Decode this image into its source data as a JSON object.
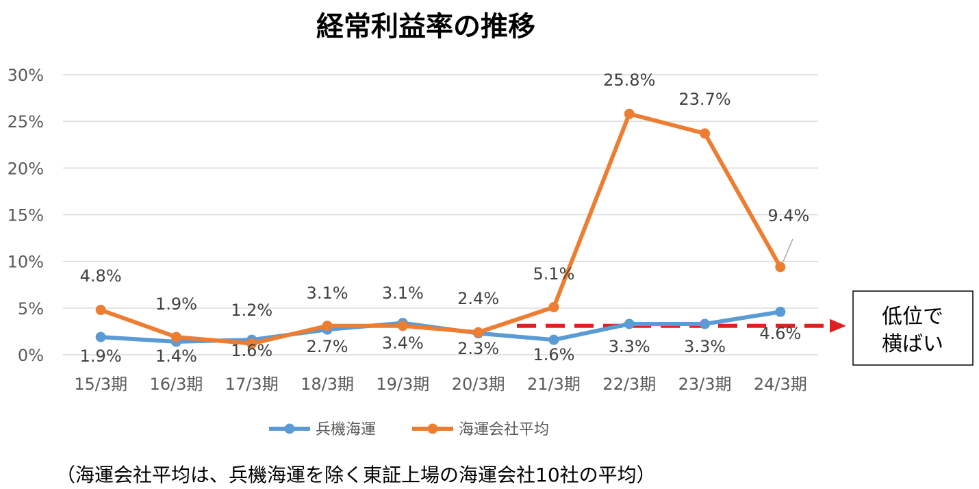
{
  "chart_data": {
    "type": "line",
    "title": "経常利益率の推移",
    "categories": [
      "15/3期",
      "16/3期",
      "17/3期",
      "18/3期",
      "19/3期",
      "20/3期",
      "21/3期",
      "22/3期",
      "23/3期",
      "24/3期"
    ],
    "ylim": [
      0,
      30
    ],
    "yticks": [
      "0%",
      "5%",
      "10%",
      "15%",
      "20%",
      "25%",
      "30%"
    ],
    "grid": true,
    "legend_position": "bottom",
    "series": [
      {
        "name": "兵機海運",
        "color": "#5B9BD5",
        "values": [
          1.9,
          1.4,
          1.6,
          2.7,
          3.4,
          2.3,
          1.6,
          3.3,
          3.3,
          4.6
        ],
        "labels": [
          "1.9%",
          "1.4%",
          "1.6%",
          "2.7%",
          "3.4%",
          "2.3%",
          "1.6%",
          "3.3%",
          "3.3%",
          "4.6%"
        ]
      },
      {
        "name": "海運会社平均",
        "color": "#ED7D31",
        "values": [
          4.8,
          1.9,
          1.2,
          3.1,
          3.1,
          2.4,
          5.1,
          25.8,
          23.7,
          9.4
        ],
        "labels": [
          "4.8%",
          "1.9%",
          "1.2%",
          "3.1%",
          "3.1%",
          "2.4%",
          "5.1%",
          "25.8%",
          "23.7%",
          "9.4%"
        ]
      }
    ],
    "annotation": {
      "arrow_color": "#E02020",
      "box_lines": [
        "低位で",
        "横ばい"
      ]
    },
    "note": "（海運会社平均は、兵機海運を除く東証上場の海運会社10社の平均）"
  }
}
